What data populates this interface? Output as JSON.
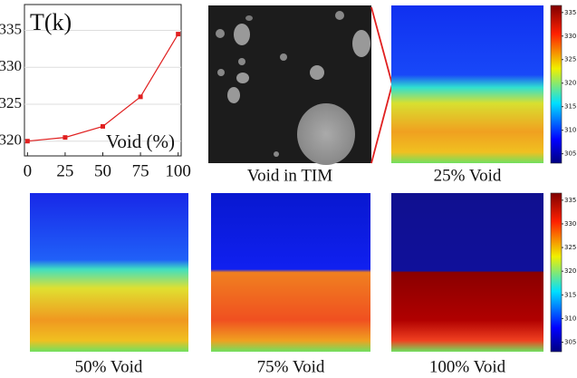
{
  "chart_data": {
    "type": "line",
    "x_label": "Void (%)",
    "y_label": "T(k)",
    "x": [
      0,
      25,
      50,
      75,
      100
    ],
    "series": [
      {
        "color": "#e02020",
        "values": [
          320,
          320.5,
          322,
          326,
          334.5
        ]
      }
    ],
    "xlim": [
      -2,
      102
    ],
    "ylim": [
      318,
      338.5
    ],
    "xticks": [
      0,
      25,
      50,
      75,
      100
    ],
    "yticks": [
      320,
      325,
      330,
      335
    ],
    "grid": true
  },
  "panels": {
    "image_caption": "Void in TIM",
    "captions": [
      "25% Void",
      "50% Void",
      "75% Void",
      "100% Void"
    ]
  },
  "colorbar": {
    "ticks": [
      305,
      310,
      315,
      320,
      325,
      330,
      335
    ],
    "lim": [
      303,
      336.5
    ]
  }
}
